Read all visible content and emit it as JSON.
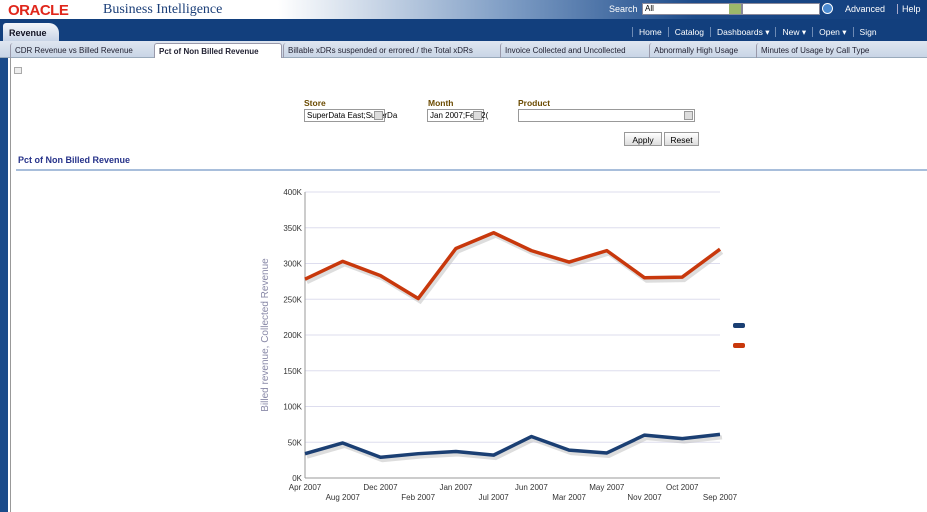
{
  "header": {
    "logo": "ORACLE",
    "product": "Business Intelligence",
    "search_label": "Search",
    "search_scope": "All",
    "advanced": "Advanced",
    "help": "Help"
  },
  "nav": {
    "active_dashboard": "Revenue",
    "links": [
      "Home",
      "Catalog",
      "Dashboards ▾",
      "New ▾",
      "Open ▾",
      "Sign"
    ]
  },
  "tabs": [
    {
      "label": "CDR Revenue vs Billed Revenue"
    },
    {
      "label": "Pct of Non Billed Revenue",
      "active": true
    },
    {
      "label": "Billable xDRs suspended or errored / the Total xDRs"
    },
    {
      "label": "Invoice Collected and Uncollected"
    },
    {
      "label": "Abnormally High Usage"
    },
    {
      "label": "Minutes of Usage by Call Type"
    }
  ],
  "filters": {
    "store_label": "Store",
    "store_value": "SuperData East;SuperDa",
    "month_label": "Month",
    "month_value": "Jan 2007;Feb 2(",
    "product_label": "Product",
    "product_value": "",
    "apply": "Apply",
    "reset": "Reset"
  },
  "section_title": "Pct of Non Billed Revenue",
  "chart_data": {
    "type": "line",
    "ylabel": "Billed revenue, Collected Revenue",
    "ylim": [
      0,
      400000
    ],
    "yticks": [
      "0K",
      "50K",
      "100K",
      "150K",
      "200K",
      "250K",
      "300K",
      "350K",
      "400K"
    ],
    "categories": [
      "Apr 2007",
      "Aug 2007",
      "Dec 2007",
      "Feb 2007",
      "Jan 2007",
      "Jul 2007",
      "Jun 2007",
      "Mar 2007",
      "May 2007",
      "Nov 2007",
      "Oct 2007",
      "Sep 2007"
    ],
    "grid": true,
    "legend_placement": "right",
    "series": [
      {
        "color": "#1b3f73",
        "values": [
          34000,
          49000,
          29000,
          34000,
          37000,
          32000,
          58000,
          39000,
          35000,
          60000,
          55000,
          61000
        ]
      },
      {
        "color": "#c8380c",
        "values": [
          278000,
          303000,
          283000,
          251000,
          321000,
          343000,
          318000,
          302000,
          318000,
          280000,
          281000,
          320000
        ]
      }
    ]
  }
}
